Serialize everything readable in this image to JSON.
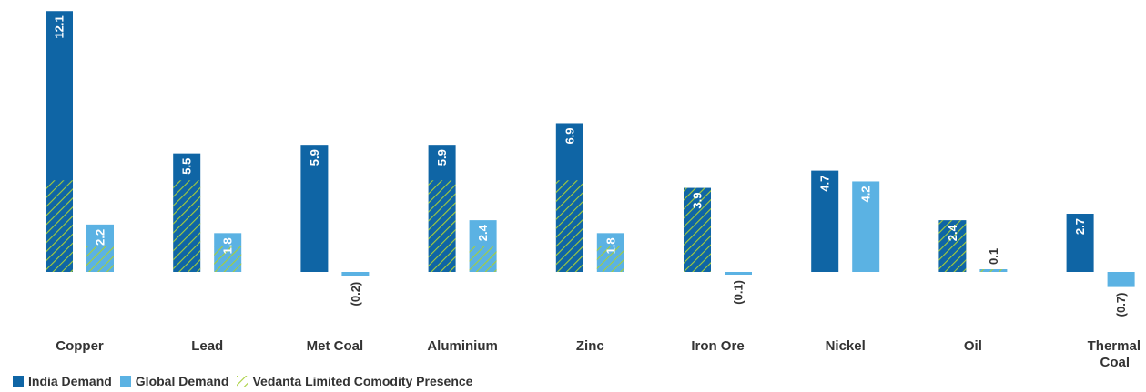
{
  "chart_data": {
    "type": "bar",
    "categories": [
      "Copper",
      "Lead",
      "Met Coal",
      "Aluminium",
      "Zinc",
      "Iron Ore",
      "Nickel",
      "Oil",
      "Thermal Coal"
    ],
    "category_lines": [
      [
        "Copper"
      ],
      [
        "Lead"
      ],
      [
        "Met Coal"
      ],
      [
        "Aluminium"
      ],
      [
        "Zinc"
      ],
      [
        "Iron Ore"
      ],
      [
        "Nickel"
      ],
      [
        "Oil"
      ],
      [
        "Thermal",
        "Coal"
      ]
    ],
    "series": [
      {
        "name": "India Demand",
        "values": [
          12.1,
          5.5,
          5.9,
          5.9,
          6.9,
          3.9,
          4.7,
          2.4,
          2.7
        ],
        "labels": [
          "12.1",
          "5.5",
          "5.9",
          "5.9",
          "6.9",
          "3.9",
          "4.7",
          "2.4",
          "2.7"
        ],
        "color": "#0f65a5"
      },
      {
        "name": "Global Demand",
        "values": [
          2.2,
          1.8,
          -0.2,
          2.4,
          1.8,
          -0.1,
          4.2,
          0.1,
          -0.7
        ],
        "labels": [
          "2.2",
          "1.8",
          "(0.2)",
          "2.4",
          "1.8",
          "(0.1)",
          "4.2",
          "0.1",
          "(0.7)"
        ],
        "color": "#5bb2e3"
      }
    ],
    "vedanta_presence": [
      true,
      true,
      false,
      true,
      true,
      true,
      false,
      true,
      false
    ],
    "pattern_color": "#a6ce39",
    "legend": {
      "india": "India Demand",
      "global": "Global Demand",
      "vedanta": "Vedanta Limited Comodity Presence"
    },
    "ylim": [
      -0.9,
      12.2
    ],
    "grid": false,
    "legend_position": "bottom-left"
  }
}
